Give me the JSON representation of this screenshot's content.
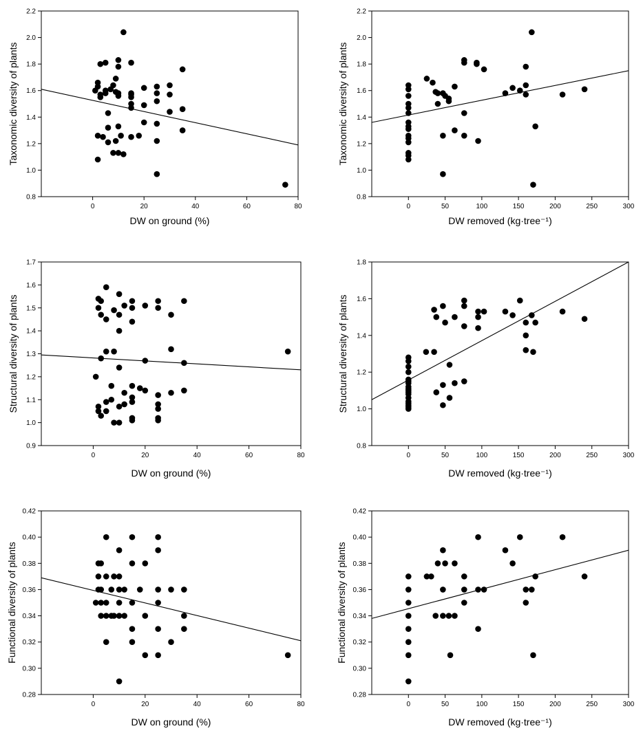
{
  "chart_data": [
    {
      "type": "scatter",
      "xlabel": "DW on ground (%)",
      "ylabel": "Taxonomic diversity of plants",
      "xlim": [
        -20,
        80
      ],
      "ylim": [
        0.8,
        2.2
      ],
      "xticks": [
        "0",
        "20",
        "40",
        "60",
        "80"
      ],
      "yticks": [
        "0.8",
        "1.0",
        "1.2",
        "1.4",
        "1.6",
        "1.8",
        "2.0",
        "2.2"
      ],
      "points": [
        [
          1,
          1.6
        ],
        [
          2,
          1.66
        ],
        [
          2,
          1.63
        ],
        [
          2,
          1.26
        ],
        [
          2,
          1.08
        ],
        [
          3,
          1.8
        ],
        [
          3,
          1.55
        ],
        [
          3,
          1.57
        ],
        [
          4,
          1.25
        ],
        [
          5,
          1.81
        ],
        [
          5,
          1.6
        ],
        [
          5,
          1.58
        ],
        [
          6,
          1.43
        ],
        [
          6,
          1.32
        ],
        [
          6,
          1.21
        ],
        [
          7,
          1.61
        ],
        [
          8,
          1.64
        ],
        [
          8,
          1.13
        ],
        [
          9,
          1.69
        ],
        [
          9,
          1.59
        ],
        [
          9,
          1.22
        ],
        [
          10,
          1.83
        ],
        [
          10,
          1.78
        ],
        [
          10,
          1.58
        ],
        [
          10,
          1.56
        ],
        [
          10,
          1.33
        ],
        [
          10,
          1.13
        ],
        [
          11,
          1.26
        ],
        [
          12,
          2.04
        ],
        [
          12,
          1.12
        ],
        [
          15,
          1.81
        ],
        [
          15,
          1.58
        ],
        [
          15,
          1.57
        ],
        [
          15,
          1.55
        ],
        [
          15,
          1.5
        ],
        [
          15,
          1.47
        ],
        [
          15,
          1.25
        ],
        [
          18,
          1.26
        ],
        [
          20,
          1.62
        ],
        [
          20,
          1.49
        ],
        [
          20,
          1.36
        ],
        [
          25,
          1.63
        ],
        [
          25,
          1.58
        ],
        [
          25,
          1.52
        ],
        [
          25,
          1.35
        ],
        [
          25,
          1.22
        ],
        [
          25,
          0.97
        ],
        [
          30,
          1.64
        ],
        [
          30,
          1.57
        ],
        [
          30,
          1.44
        ],
        [
          35,
          1.76
        ],
        [
          35,
          1.46
        ],
        [
          35,
          1.3
        ],
        [
          75,
          0.89
        ]
      ],
      "trend": [
        [
          -20,
          1.61
        ],
        [
          80,
          1.19
        ]
      ]
    },
    {
      "type": "scatter",
      "xlabel": "DW removed (kg·tree⁻¹)",
      "ylabel": "Taxonomic diversity of plants",
      "xlim": [
        -50,
        300
      ],
      "ylim": [
        0.8,
        2.2
      ],
      "xticks": [
        "0",
        "50",
        "100",
        "150",
        "200",
        "250",
        "300"
      ],
      "yticks": [
        "0.8",
        "1.0",
        "1.2",
        "1.4",
        "1.6",
        "1.8",
        "2.0",
        "2.2"
      ],
      "points": [
        [
          0,
          1.64
        ],
        [
          0,
          1.61
        ],
        [
          0,
          1.56
        ],
        [
          0,
          1.5
        ],
        [
          0,
          1.47
        ],
        [
          0,
          1.43
        ],
        [
          0,
          1.36
        ],
        [
          0,
          1.33
        ],
        [
          0,
          1.31
        ],
        [
          0,
          1.26
        ],
        [
          0,
          1.24
        ],
        [
          0,
          1.21
        ],
        [
          0,
          1.13
        ],
        [
          0,
          1.11
        ],
        [
          0,
          1.08
        ],
        [
          25,
          1.69
        ],
        [
          33,
          1.66
        ],
        [
          37,
          1.59
        ],
        [
          40,
          1.58
        ],
        [
          40,
          1.5
        ],
        [
          47,
          1.58
        ],
        [
          47,
          1.26
        ],
        [
          47,
          0.97
        ],
        [
          50,
          1.56
        ],
        [
          55,
          1.54
        ],
        [
          55,
          1.52
        ],
        [
          63,
          1.63
        ],
        [
          63,
          1.3
        ],
        [
          76,
          1.83
        ],
        [
          76,
          1.81
        ],
        [
          76,
          1.43
        ],
        [
          76,
          1.26
        ],
        [
          93,
          1.81
        ],
        [
          93,
          1.8
        ],
        [
          95,
          1.22
        ],
        [
          103,
          1.76
        ],
        [
          132,
          1.58
        ],
        [
          142,
          1.62
        ],
        [
          152,
          1.6
        ],
        [
          160,
          1.78
        ],
        [
          160,
          1.64
        ],
        [
          160,
          1.57
        ],
        [
          168,
          2.04
        ],
        [
          170,
          0.89
        ],
        [
          173,
          1.33
        ],
        [
          210,
          1.57
        ],
        [
          240,
          1.61
        ]
      ],
      "trend": [
        [
          -50,
          1.36
        ],
        [
          300,
          1.75
        ]
      ]
    },
    {
      "type": "scatter",
      "xlabel": "DW on ground (%)",
      "ylabel": "Structural diversity of plants",
      "xlim": [
        -20,
        80
      ],
      "ylim": [
        0.9,
        1.7
      ],
      "xticks": [
        "0",
        "20",
        "40",
        "60",
        "80"
      ],
      "yticks": [
        "0.9",
        "1.0",
        "1.1",
        "1.2",
        "1.3",
        "1.4",
        "1.5",
        "1.6",
        "1.7"
      ],
      "points": [
        [
          1,
          1.2
        ],
        [
          2,
          1.54
        ],
        [
          2,
          1.5
        ],
        [
          2,
          1.07
        ],
        [
          2,
          1.05
        ],
        [
          3,
          1.53
        ],
        [
          3,
          1.47
        ],
        [
          3,
          1.28
        ],
        [
          3,
          1.03
        ],
        [
          5,
          1.59
        ],
        [
          5,
          1.45
        ],
        [
          5,
          1.31
        ],
        [
          5,
          1.09
        ],
        [
          5,
          1.05
        ],
        [
          7,
          1.16
        ],
        [
          7,
          1.1
        ],
        [
          8,
          1.49
        ],
        [
          8,
          1.31
        ],
        [
          8,
          1.0
        ],
        [
          10,
          1.56
        ],
        [
          10,
          1.47
        ],
        [
          10,
          1.4
        ],
        [
          10,
          1.24
        ],
        [
          10,
          1.07
        ],
        [
          10,
          1.0
        ],
        [
          12,
          1.51
        ],
        [
          12,
          1.13
        ],
        [
          12,
          1.08
        ],
        [
          15,
          1.53
        ],
        [
          15,
          1.5
        ],
        [
          15,
          1.44
        ],
        [
          15,
          1.16
        ],
        [
          15,
          1.11
        ],
        [
          15,
          1.09
        ],
        [
          15,
          1.02
        ],
        [
          15,
          1.01
        ],
        [
          18,
          1.15
        ],
        [
          20,
          1.51
        ],
        [
          20,
          1.27
        ],
        [
          20,
          1.14
        ],
        [
          25,
          1.53
        ],
        [
          25,
          1.5
        ],
        [
          25,
          1.12
        ],
        [
          25,
          1.08
        ],
        [
          25,
          1.06
        ],
        [
          25,
          1.02
        ],
        [
          25,
          1.01
        ],
        [
          30,
          1.47
        ],
        [
          30,
          1.32
        ],
        [
          30,
          1.13
        ],
        [
          35,
          1.53
        ],
        [
          35,
          1.26
        ],
        [
          35,
          1.14
        ],
        [
          75,
          1.31
        ]
      ],
      "trend": [
        [
          -20,
          1.295
        ],
        [
          80,
          1.23
        ]
      ]
    },
    {
      "type": "scatter",
      "xlabel": "DW removed (kg·tree⁻¹)",
      "ylabel": "Structural diversity of plants",
      "xlim": [
        -50,
        300
      ],
      "ylim": [
        0.8,
        1.8
      ],
      "xticks": [
        "0",
        "50",
        "100",
        "150",
        "200",
        "250",
        "300"
      ],
      "yticks": [
        "0.8",
        "1.0",
        "1.2",
        "1.4",
        "1.6",
        "1.8"
      ],
      "points": [
        [
          0,
          1.28
        ],
        [
          0,
          1.26
        ],
        [
          0,
          1.23
        ],
        [
          0,
          1.2
        ],
        [
          0,
          1.16
        ],
        [
          0,
          1.15
        ],
        [
          0,
          1.14
        ],
        [
          0,
          1.12
        ],
        [
          0,
          1.11
        ],
        [
          0,
          1.1
        ],
        [
          0,
          1.09
        ],
        [
          0,
          1.08
        ],
        [
          0,
          1.06
        ],
        [
          0,
          1.04
        ],
        [
          0,
          1.03
        ],
        [
          0,
          1.02
        ],
        [
          0,
          1.01
        ],
        [
          0,
          1.0
        ],
        [
          24,
          1.31
        ],
        [
          35,
          1.54
        ],
        [
          35,
          1.31
        ],
        [
          38,
          1.5
        ],
        [
          38,
          1.09
        ],
        [
          47,
          1.56
        ],
        [
          47,
          1.13
        ],
        [
          47,
          1.02
        ],
        [
          50,
          1.47
        ],
        [
          56,
          1.24
        ],
        [
          56,
          1.06
        ],
        [
          63,
          1.5
        ],
        [
          63,
          1.14
        ],
        [
          76,
          1.59
        ],
        [
          76,
          1.56
        ],
        [
          76,
          1.45
        ],
        [
          76,
          1.15
        ],
        [
          95,
          1.53
        ],
        [
          95,
          1.5
        ],
        [
          95,
          1.44
        ],
        [
          103,
          1.53
        ],
        [
          132,
          1.53
        ],
        [
          142,
          1.51
        ],
        [
          152,
          1.59
        ],
        [
          160,
          1.47
        ],
        [
          160,
          1.4
        ],
        [
          160,
          1.32
        ],
        [
          168,
          1.51
        ],
        [
          170,
          1.31
        ],
        [
          173,
          1.47
        ],
        [
          210,
          1.53
        ],
        [
          240,
          1.49
        ]
      ],
      "trend": [
        [
          -50,
          1.05
        ],
        [
          300,
          1.8
        ]
      ]
    },
    {
      "type": "scatter",
      "xlabel": "DW on ground (%)",
      "ylabel": "Functional diversity of plants",
      "xlim": [
        -20,
        80
      ],
      "ylim": [
        0.28,
        0.42
      ],
      "xticks": [
        "0",
        "20",
        "40",
        "60",
        "80"
      ],
      "yticks": [
        "0.28",
        "0.30",
        "0.32",
        "0.34",
        "0.36",
        "0.38",
        "0.40",
        "0.42"
      ],
      "points": [
        [
          1,
          0.35
        ],
        [
          2,
          0.38
        ],
        [
          2,
          0.37
        ],
        [
          2,
          0.36
        ],
        [
          3,
          0.38
        ],
        [
          3,
          0.36
        ],
        [
          3,
          0.35
        ],
        [
          3,
          0.34
        ],
        [
          5,
          0.4
        ],
        [
          5,
          0.37
        ],
        [
          5,
          0.35
        ],
        [
          5,
          0.34
        ],
        [
          5,
          0.32
        ],
        [
          7,
          0.36
        ],
        [
          7,
          0.34
        ],
        [
          8,
          0.37
        ],
        [
          8,
          0.34
        ],
        [
          10,
          0.39
        ],
        [
          10,
          0.37
        ],
        [
          10,
          0.36
        ],
        [
          10,
          0.35
        ],
        [
          10,
          0.34
        ],
        [
          10,
          0.29
        ],
        [
          12,
          0.36
        ],
        [
          12,
          0.34
        ],
        [
          15,
          0.4
        ],
        [
          15,
          0.38
        ],
        [
          15,
          0.35
        ],
        [
          15,
          0.33
        ],
        [
          15,
          0.32
        ],
        [
          18,
          0.36
        ],
        [
          20,
          0.38
        ],
        [
          20,
          0.34
        ],
        [
          20,
          0.31
        ],
        [
          25,
          0.4
        ],
        [
          25,
          0.39
        ],
        [
          25,
          0.36
        ],
        [
          25,
          0.35
        ],
        [
          25,
          0.33
        ],
        [
          25,
          0.31
        ],
        [
          30,
          0.36
        ],
        [
          30,
          0.32
        ],
        [
          35,
          0.36
        ],
        [
          35,
          0.34
        ],
        [
          35,
          0.33
        ],
        [
          75,
          0.31
        ]
      ],
      "trend": [
        [
          -20,
          0.369
        ],
        [
          80,
          0.321
        ]
      ]
    },
    {
      "type": "scatter",
      "xlabel": "DW removed (kg·tree⁻¹)",
      "ylabel": "Functional diversity of plants",
      "xlim": [
        -50,
        300
      ],
      "ylim": [
        0.28,
        0.42
      ],
      "xticks": [
        "0",
        "50",
        "100",
        "150",
        "200",
        "250",
        "300"
      ],
      "yticks": [
        "0.28",
        "0.30",
        "0.32",
        "0.34",
        "0.36",
        "0.38",
        "0.40",
        "0.42"
      ],
      "points": [
        [
          0,
          0.37
        ],
        [
          0,
          0.36
        ],
        [
          0,
          0.35
        ],
        [
          0,
          0.34
        ],
        [
          0,
          0.33
        ],
        [
          0,
          0.32
        ],
        [
          0,
          0.31
        ],
        [
          0,
          0.29
        ],
        [
          25,
          0.37
        ],
        [
          31,
          0.37
        ],
        [
          37,
          0.34
        ],
        [
          40,
          0.38
        ],
        [
          47,
          0.39
        ],
        [
          47,
          0.36
        ],
        [
          47,
          0.34
        ],
        [
          50,
          0.38
        ],
        [
          55,
          0.34
        ],
        [
          57,
          0.31
        ],
        [
          63,
          0.38
        ],
        [
          63,
          0.34
        ],
        [
          76,
          0.37
        ],
        [
          76,
          0.36
        ],
        [
          76,
          0.35
        ],
        [
          95,
          0.4
        ],
        [
          95,
          0.36
        ],
        [
          95,
          0.33
        ],
        [
          103,
          0.36
        ],
        [
          132,
          0.39
        ],
        [
          142,
          0.38
        ],
        [
          152,
          0.4
        ],
        [
          160,
          0.36
        ],
        [
          160,
          0.35
        ],
        [
          168,
          0.36
        ],
        [
          170,
          0.31
        ],
        [
          173,
          0.37
        ],
        [
          210,
          0.4
        ],
        [
          240,
          0.37
        ]
      ],
      "trend": [
        [
          -50,
          0.338
        ],
        [
          300,
          0.39
        ]
      ]
    }
  ]
}
